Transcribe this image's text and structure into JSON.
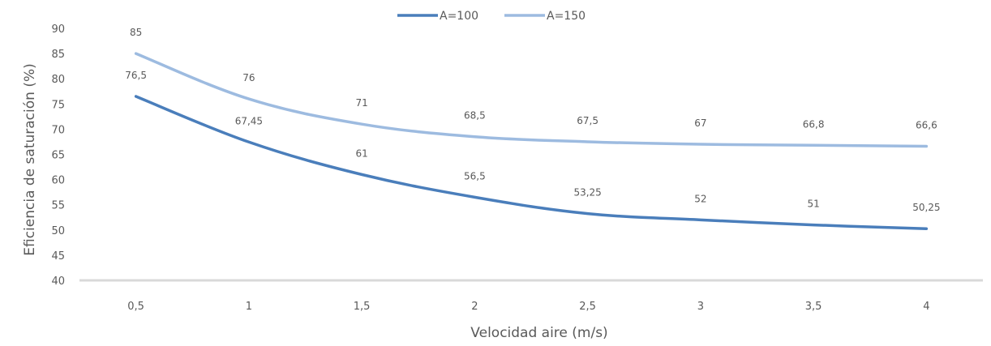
{
  "chart_data": {
    "type": "line",
    "xlabel": "Velocidad aire (m/s)",
    "ylabel": "Eficiencia de saturación (%)",
    "categories": [
      "0,5",
      "1",
      "1,5",
      "2",
      "2,5",
      "3",
      "3,5",
      "4"
    ],
    "ylim": [
      40,
      90
    ],
    "yticks": [
      40,
      45,
      50,
      55,
      60,
      65,
      70,
      75,
      80,
      85,
      90
    ],
    "grid": false,
    "legend_position": "top",
    "series": [
      {
        "name": "A=100",
        "color": "#4a7ebb",
        "values": [
          76.5,
          67.45,
          61,
          56.5,
          53.25,
          52,
          51,
          50.25
        ],
        "labels": [
          "76,5",
          "67,45",
          "61",
          "56,5",
          "53,25",
          "52",
          "51",
          "50,25"
        ]
      },
      {
        "name": "A=150",
        "color": "#9dbbe0",
        "values": [
          85,
          76,
          71,
          68.5,
          67.5,
          67,
          66.8,
          66.6
        ],
        "labels": [
          "85",
          "76",
          "71",
          "68,5",
          "67,5",
          "67",
          "66,8",
          "66,6"
        ]
      }
    ]
  }
}
